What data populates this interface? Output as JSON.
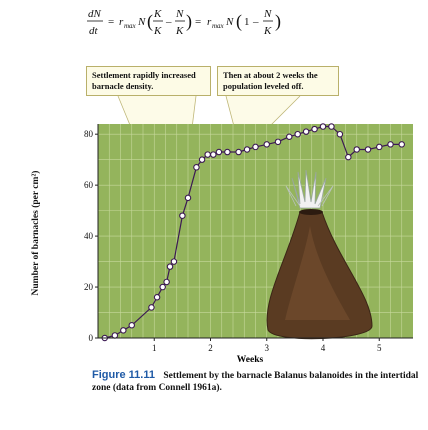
{
  "equation": {
    "lhs_num": "dN",
    "lhs_den": "dt",
    "r": "r",
    "r_sub": "max",
    "N": "N",
    "frac1_num": "K",
    "frac1_den": "K",
    "frac2_num": "N",
    "frac2_den": "K",
    "one": "1",
    "frac3_num": "N",
    "frac3_den": "K"
  },
  "callouts": [
    {
      "line1": "Settlement rapidly increased",
      "line2": "barnacle density."
    },
    {
      "line1": "Then at about 2 weeks the",
      "line2": "population leveled off."
    }
  ],
  "chart_data": {
    "type": "line",
    "xlabel": "Weeks",
    "ylabel": "Number of barnacles (per cm²)",
    "xlim": [
      0,
      5.6
    ],
    "ylim": [
      0,
      84
    ],
    "xticks": [
      1,
      2,
      3,
      4,
      5
    ],
    "yticks": [
      0,
      20,
      40,
      60,
      80
    ],
    "grid": true,
    "series": [
      {
        "points": [
          [
            0.12,
            0
          ],
          [
            0.3,
            1
          ],
          [
            0.45,
            3
          ],
          [
            0.6,
            5
          ],
          [
            0.95,
            12
          ],
          [
            1.05,
            16
          ],
          [
            1.15,
            20
          ],
          [
            1.22,
            22
          ],
          [
            1.28,
            28
          ],
          [
            1.35,
            30
          ],
          [
            1.5,
            48
          ],
          [
            1.6,
            55
          ],
          [
            1.75,
            67
          ],
          [
            1.85,
            70
          ],
          [
            1.95,
            72
          ],
          [
            2.05,
            72
          ],
          [
            2.15,
            73
          ],
          [
            2.3,
            73
          ],
          [
            2.5,
            73
          ],
          [
            2.65,
            74
          ],
          [
            2.8,
            75
          ],
          [
            3.0,
            76
          ],
          [
            3.2,
            77
          ],
          [
            3.4,
            79
          ],
          [
            3.55,
            80
          ],
          [
            3.7,
            81
          ],
          [
            3.85,
            82
          ],
          [
            4.0,
            83
          ],
          [
            4.15,
            83
          ],
          [
            4.3,
            80
          ],
          [
            4.45,
            71
          ],
          [
            4.6,
            74
          ],
          [
            4.8,
            74
          ],
          [
            5.0,
            75
          ],
          [
            5.2,
            76
          ],
          [
            5.4,
            76
          ]
        ]
      }
    ]
  },
  "caption": {
    "figure": "Figure 11.11",
    "text": "Settlement by the barnacle Balanus balanoides in the intertidal zone (data from Connell 1961a)."
  },
  "colors": {
    "plot_bg": "#94b45c",
    "grid": "#c7d99c",
    "line": "#3c1a53",
    "marker_fill": "#ffffff",
    "callout_bg": "#fdfbe6",
    "callout_border": "#b9b06a",
    "figure_label": "#1f5aa6"
  }
}
